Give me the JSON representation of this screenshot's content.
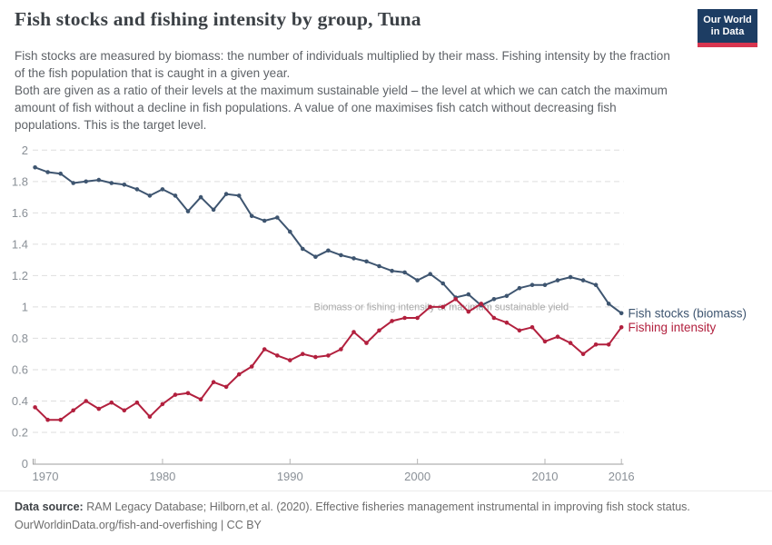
{
  "header": {
    "title": "Fish stocks and fishing intensity by group, Tuna",
    "subtitle_para1": "Fish stocks are measured by biomass: the number of individuals multiplied by their mass. Fishing intensity by the fraction of the fish population that is caught in a given year.",
    "subtitle_para2": "Both are given as a ratio of their levels at the maximum sustainable yield – the level at which we can catch the maximum amount of fish without a decline in fish populations. A value of one maximises fish catch without decreasing fish populations. This is the target level.",
    "logo": {
      "line1": "Our World",
      "line2": "in Data",
      "bg_color": "#1d3d63",
      "stripe_color": "#d8354f"
    }
  },
  "chart_data": {
    "type": "line",
    "title": "Fish stocks and fishing intensity by group, Tuna",
    "x": [
      1970,
      1971,
      1972,
      1973,
      1974,
      1975,
      1976,
      1977,
      1978,
      1979,
      1980,
      1981,
      1982,
      1983,
      1984,
      1985,
      1986,
      1987,
      1988,
      1989,
      1990,
      1991,
      1992,
      1993,
      1994,
      1995,
      1996,
      1997,
      1998,
      1999,
      2000,
      2001,
      2002,
      2003,
      2004,
      2005,
      2006,
      2007,
      2008,
      2009,
      2010,
      2011,
      2012,
      2013,
      2014,
      2015,
      2016
    ],
    "series": [
      {
        "name": "Fish stocks (biomass)",
        "color": "#3e5570",
        "values": [
          1.89,
          1.86,
          1.85,
          1.79,
          1.8,
          1.81,
          1.79,
          1.78,
          1.75,
          1.71,
          1.75,
          1.71,
          1.61,
          1.7,
          1.62,
          1.72,
          1.71,
          1.58,
          1.55,
          1.57,
          1.48,
          1.37,
          1.32,
          1.36,
          1.33,
          1.31,
          1.29,
          1.26,
          1.23,
          1.22,
          1.17,
          1.21,
          1.15,
          1.06,
          1.08,
          1.01,
          1.05,
          1.07,
          1.12,
          1.14,
          1.14,
          1.17,
          1.19,
          1.17,
          1.14,
          1.02,
          0.96
        ]
      },
      {
        "name": "Fishing intensity",
        "color": "#b2203e",
        "values": [
          0.36,
          0.28,
          0.28,
          0.34,
          0.4,
          0.35,
          0.39,
          0.34,
          0.39,
          0.3,
          0.38,
          0.44,
          0.45,
          0.41,
          0.52,
          0.49,
          0.57,
          0.62,
          0.73,
          0.69,
          0.66,
          0.7,
          0.68,
          0.69,
          0.73,
          0.84,
          0.77,
          0.85,
          0.91,
          0.93,
          0.93,
          1.0,
          1.0,
          1.05,
          0.97,
          1.02,
          0.93,
          0.9,
          0.85,
          0.87,
          0.78,
          0.81,
          0.77,
          0.7,
          0.76,
          0.76,
          0.87
        ]
      }
    ],
    "annotation": "Biomass or fishing intensity at maximum sustainable yield",
    "annotation_value": 1,
    "xticks": [
      1970,
      1980,
      1990,
      2000,
      2010,
      2016
    ],
    "yticks": [
      0,
      0.2,
      0.4,
      0.6,
      0.8,
      1,
      1.2,
      1.4,
      1.6,
      1.8,
      2
    ],
    "xlim": [
      1970,
      2016
    ],
    "ylim": [
      0,
      2
    ],
    "grid": "horizontal-dashed",
    "legend_position": "line-end-labels",
    "colors": {
      "grid": "#dedede",
      "axis": "#9c9c9c",
      "tick_text": "#8a9097",
      "annotation_text": "#a9a9a9"
    }
  },
  "footer": {
    "source_label": "Data source:",
    "source_text": "RAM Legacy Database; Hilborn,et al. (2020). Effective fisheries management instrumental in improving fish stock status.",
    "credit": "OurWorldinData.org/fish-and-overfishing | CC BY"
  }
}
